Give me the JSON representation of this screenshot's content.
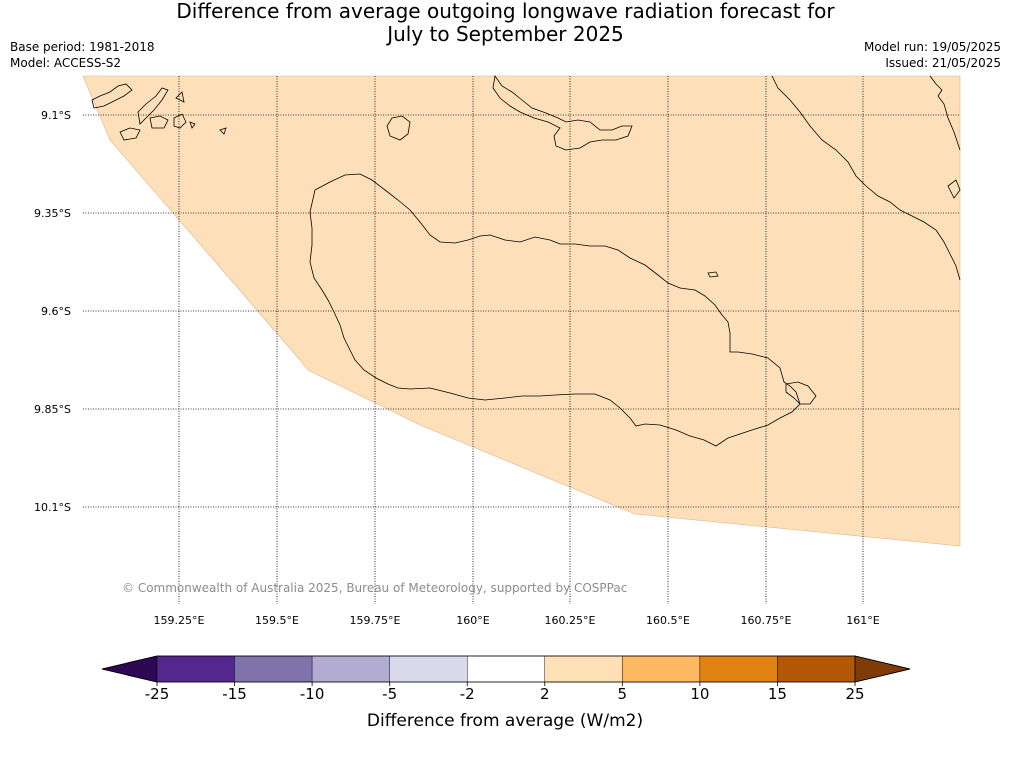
{
  "title": {
    "line1": "Difference from average outgoing longwave radiation forecast for",
    "line2": "July to September 2025"
  },
  "meta": {
    "base_period": "Base period: 1981-2018",
    "model": "Model: ACCESS-S2",
    "model_run": "Model run: 19/05/2025",
    "issued": "Issued: 21/05/2025"
  },
  "map": {
    "latitude_labels": [
      "9.1°S",
      "9.35°S",
      "9.6°S",
      "9.85°S",
      "10.1°S"
    ],
    "longitude_labels": [
      "159.25°E",
      "159.5°E",
      "159.75°E",
      "160°E",
      "160.25°E",
      "160.5°E",
      "160.75°E",
      "161°E"
    ],
    "land_fill_color": "#fde0b9",
    "copyright": "© Commonwealth of Australia 2025, Bureau of Meteorology, supported by COSPPac"
  },
  "colorbar": {
    "title": "Difference from average (W/m2)",
    "ticks": [
      "-25",
      "-15",
      "-10",
      "-5",
      "-2",
      "2",
      "5",
      "10",
      "15",
      "25"
    ],
    "colors": [
      "#2e0854",
      "#54278f",
      "#8073ac",
      "#b2abd2",
      "#d8daeb",
      "#ffffff",
      "#fee0b6",
      "#fdb863",
      "#e08214",
      "#b35806",
      "#7f3b08"
    ]
  }
}
